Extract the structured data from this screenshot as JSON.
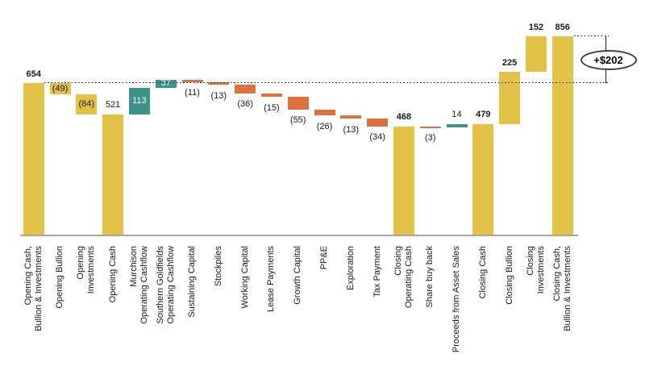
{
  "chart_data": {
    "type": "waterfall",
    "annotation": {
      "text": "+$202"
    },
    "colors": {
      "yellow": "#E2C348",
      "teal": "#3E928C",
      "orange": "#E0703C",
      "axis": "#A6A6A6"
    },
    "bars": [
      {
        "name": "Opening Cash, Bullion & Investments",
        "label_lines": [
          "Opening Cash,",
          "Bullion & Investments"
        ],
        "value": 654,
        "display": "654",
        "kind": "total",
        "color": "yellow",
        "value_pos": "above",
        "bold": true
      },
      {
        "name": "Opening Bullion",
        "label_lines": [
          "Opening Bullion"
        ],
        "value": -49,
        "display": "(49)",
        "kind": "delta",
        "color": "yellow",
        "value_pos": "inside",
        "bold": false
      },
      {
        "name": "Opening Investments",
        "label_lines": [
          "Opening",
          "Investments"
        ],
        "value": -84,
        "display": "(84)",
        "kind": "delta",
        "color": "yellow",
        "value_pos": "inside",
        "bold": false
      },
      {
        "name": "Opening Cash",
        "label_lines": [
          "Opening Cash"
        ],
        "value": 521,
        "display": "521",
        "kind": "total",
        "color": "yellow",
        "value_pos": "above",
        "bold": false
      },
      {
        "name": "Murchison Operating Cashflow",
        "label_lines": [
          "Murchison",
          "Operating Cashflow"
        ],
        "value": 113,
        "display": "113",
        "kind": "delta",
        "color": "teal",
        "value_pos": "inside-white",
        "bold": false
      },
      {
        "name": "Southern Goldfields Operating Cashflow",
        "label_lines": [
          "Southern Goldfields",
          "Operating Cashflow"
        ],
        "value": 37,
        "display": "37",
        "kind": "delta",
        "color": "teal",
        "value_pos": "inside-white",
        "bold": false
      },
      {
        "name": "Sustaining Capital",
        "label_lines": [
          "Sustaining Capital"
        ],
        "value": -11,
        "display": "(11)",
        "kind": "delta",
        "color": "orange",
        "value_pos": "below",
        "bold": false
      },
      {
        "name": "Stockpiles",
        "label_lines": [
          "Stockpiles"
        ],
        "value": -13,
        "display": "(13)",
        "kind": "delta",
        "color": "orange",
        "value_pos": "below",
        "bold": false
      },
      {
        "name": "Working Capital",
        "label_lines": [
          "Working Capital"
        ],
        "value": -36,
        "display": "(36)",
        "kind": "delta",
        "color": "orange",
        "value_pos": "below",
        "bold": false
      },
      {
        "name": "Lease Payments",
        "label_lines": [
          "Lease Payments"
        ],
        "value": -15,
        "display": "(15)",
        "kind": "delta",
        "color": "orange",
        "value_pos": "below",
        "bold": false
      },
      {
        "name": "Growth Capital",
        "label_lines": [
          "Growth Capital"
        ],
        "value": -55,
        "display": "(55)",
        "kind": "delta",
        "color": "orange",
        "value_pos": "below",
        "bold": false
      },
      {
        "name": "PP&E",
        "label_lines": [
          "PP&E"
        ],
        "value": -26,
        "display": "(26)",
        "kind": "delta",
        "color": "orange",
        "value_pos": "below",
        "bold": false
      },
      {
        "name": "Exploration",
        "label_lines": [
          "Exploration"
        ],
        "value": -13,
        "display": "(13)",
        "kind": "delta",
        "color": "orange",
        "value_pos": "below",
        "bold": false
      },
      {
        "name": "Tax Payment",
        "label_lines": [
          "Tax Payment"
        ],
        "value": -34,
        "display": "(34)",
        "kind": "delta",
        "color": "orange",
        "value_pos": "below",
        "bold": false
      },
      {
        "name": "Closing Operating Cash",
        "label_lines": [
          "Closing",
          "Operating Cash"
        ],
        "value": 468,
        "display": "468",
        "kind": "total",
        "color": "yellow",
        "value_pos": "above",
        "bold": true
      },
      {
        "name": "Share buy back",
        "label_lines": [
          "Share buy back"
        ],
        "value": -3,
        "display": "(3)",
        "kind": "delta",
        "color": "orange",
        "value_pos": "below",
        "bold": false
      },
      {
        "name": "Proceeds from Asset Sales",
        "label_lines": [
          "Proceeds from Asset Sales"
        ],
        "value": 14,
        "display": "14",
        "kind": "delta",
        "color": "teal",
        "value_pos": "above",
        "bold": false
      },
      {
        "name": "Closing Cash",
        "label_lines": [
          "Closing Cash"
        ],
        "value": 479,
        "display": "479",
        "kind": "total",
        "color": "yellow",
        "value_pos": "above",
        "bold": true
      },
      {
        "name": "Closing Bullion",
        "label_lines": [
          "Closing Bullion"
        ],
        "value": 225,
        "display": "225",
        "kind": "delta",
        "color": "yellow",
        "value_pos": "above",
        "bold": true
      },
      {
        "name": "Closing Investments",
        "label_lines": [
          "Closing",
          "Investments"
        ],
        "value": 152,
        "display": "152",
        "kind": "delta",
        "color": "yellow",
        "value_pos": "above",
        "bold": true
      },
      {
        "name": "Closing Cash, Bullion & Investments",
        "label_lines": [
          "Closing Cash,",
          "Bullion & Investments"
        ],
        "value": 856,
        "display": "856",
        "kind": "total",
        "color": "yellow",
        "value_pos": "above",
        "bold": true
      }
    ]
  }
}
